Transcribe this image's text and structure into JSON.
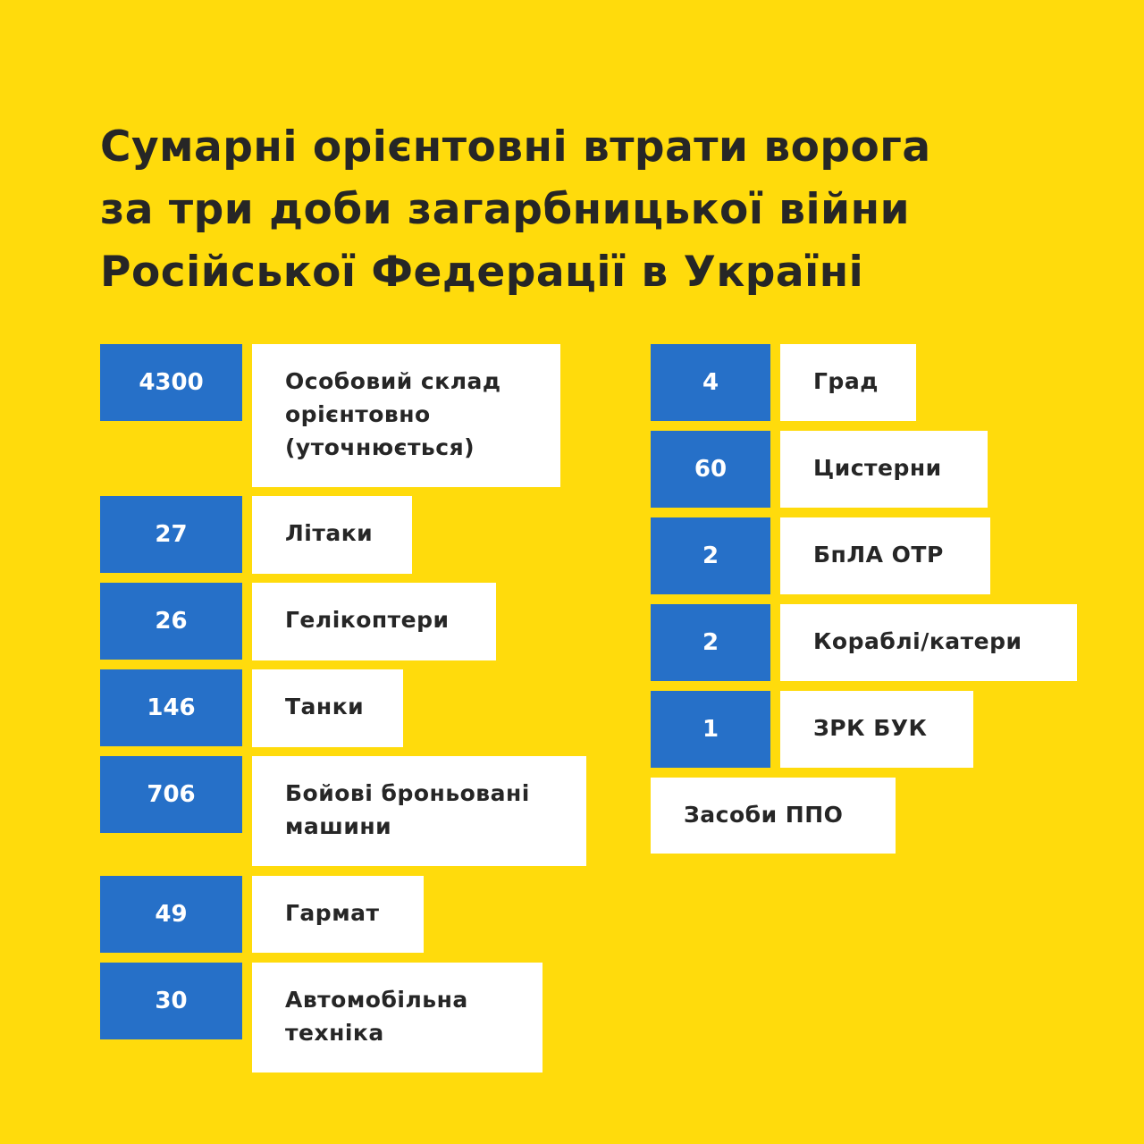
{
  "title": "Сумарні орієнтовні втрати ворога\nза три доби загарбницької війни\nРосійської Федерації в Україні",
  "colors": {
    "background": "#FFDB0C",
    "number_box": "#2670C8",
    "label_box": "#FFFFFF",
    "text": "#262626"
  },
  "left_items": [
    {
      "value": "4300",
      "label": "Особовий склад орієнтовно (уточнюється)"
    },
    {
      "value": "27",
      "label": "Літаки"
    },
    {
      "value": "26",
      "label": "Гелікоптери"
    },
    {
      "value": "146",
      "label": "Танки"
    },
    {
      "value": "706",
      "label": "Бойові броньовані машини"
    },
    {
      "value": "49",
      "label": "Гармат"
    },
    {
      "value": "30",
      "label": "Автомобільна техніка"
    }
  ],
  "right_items": [
    {
      "value": "4",
      "label": "Град"
    },
    {
      "value": "60",
      "label": "Цистерни"
    },
    {
      "value": "2",
      "label": "БпЛА ОТР"
    },
    {
      "value": "2",
      "label": "Кораблі/катери"
    },
    {
      "value": "1",
      "label": "ЗРК БУК"
    }
  ],
  "extra_item": {
    "label": "Засоби ППО"
  }
}
